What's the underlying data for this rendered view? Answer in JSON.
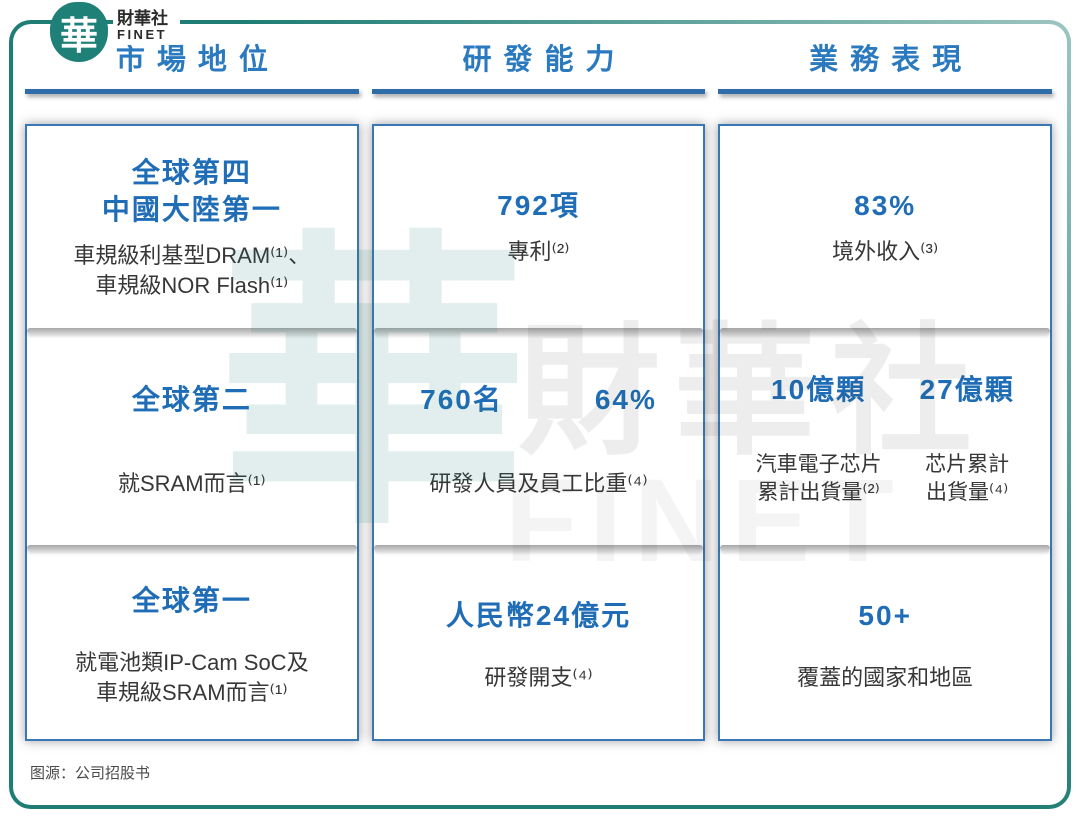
{
  "logo": {
    "mark": "華",
    "name": "財華社",
    "name_en": "FINET"
  },
  "columns": [
    {
      "header": "市場地位",
      "sections": [
        {
          "title_lines": [
            "全球第四",
            "中國大陸第一"
          ],
          "desc_lines": [
            "車規級利基型DRAM⁽¹⁾、",
            "車規級NOR Flash⁽¹⁾"
          ]
        },
        {
          "title_lines": [
            "全球第二"
          ],
          "desc_lines": [
            "就SRAM而言⁽¹⁾"
          ]
        },
        {
          "title_lines": [
            "全球第一"
          ],
          "desc_lines": [
            "就電池類IP-Cam SoC及",
            "車規級SRAM而言⁽¹⁾"
          ]
        }
      ]
    },
    {
      "header": "研發能力",
      "sections": [
        {
          "value": "792項",
          "label": "專利⁽²⁾"
        },
        {
          "values": [
            "760名",
            "64%"
          ],
          "label": "研發人員及員工比重⁽⁴⁾"
        },
        {
          "value": "人民幣24億元",
          "label": "研發開支⁽⁴⁾"
        }
      ]
    },
    {
      "header": "業務表現",
      "sections": [
        {
          "value": "83%",
          "label": "境外收入⁽³⁾"
        },
        {
          "pairs": [
            {
              "value": "10億顆",
              "label_lines": [
                "汽車電子芯片",
                "累計出貨量⁽²⁾"
              ]
            },
            {
              "value": "27億顆",
              "label_lines": [
                "芯片累計",
                "出貨量⁽⁴⁾"
              ]
            }
          ]
        },
        {
          "value": "50+",
          "label": "覆蓋的國家和地區"
        }
      ]
    }
  ],
  "watermark": {
    "mark": "華",
    "text": "財華社",
    "text_en": "FINET"
  },
  "source": "图源：公司招股书",
  "colors": {
    "header_blue": "#2b7ac0",
    "value_blue": "#1f6db6",
    "underline_blue": "#2f6da9",
    "card_border_blue": "#3a78b5",
    "frame_teal": "#1e7d74",
    "text_dark": "#373737"
  }
}
